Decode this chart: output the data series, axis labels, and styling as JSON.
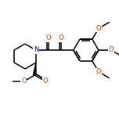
{
  "background_color": "#ffffff",
  "bond_color": "#000000",
  "atom_colors": {
    "N": "#0000cc",
    "O": "#dd4400"
  },
  "bond_width": 1.1,
  "font_size": 6.0,
  "figsize": [
    1.52,
    1.52
  ],
  "dpi": 100
}
